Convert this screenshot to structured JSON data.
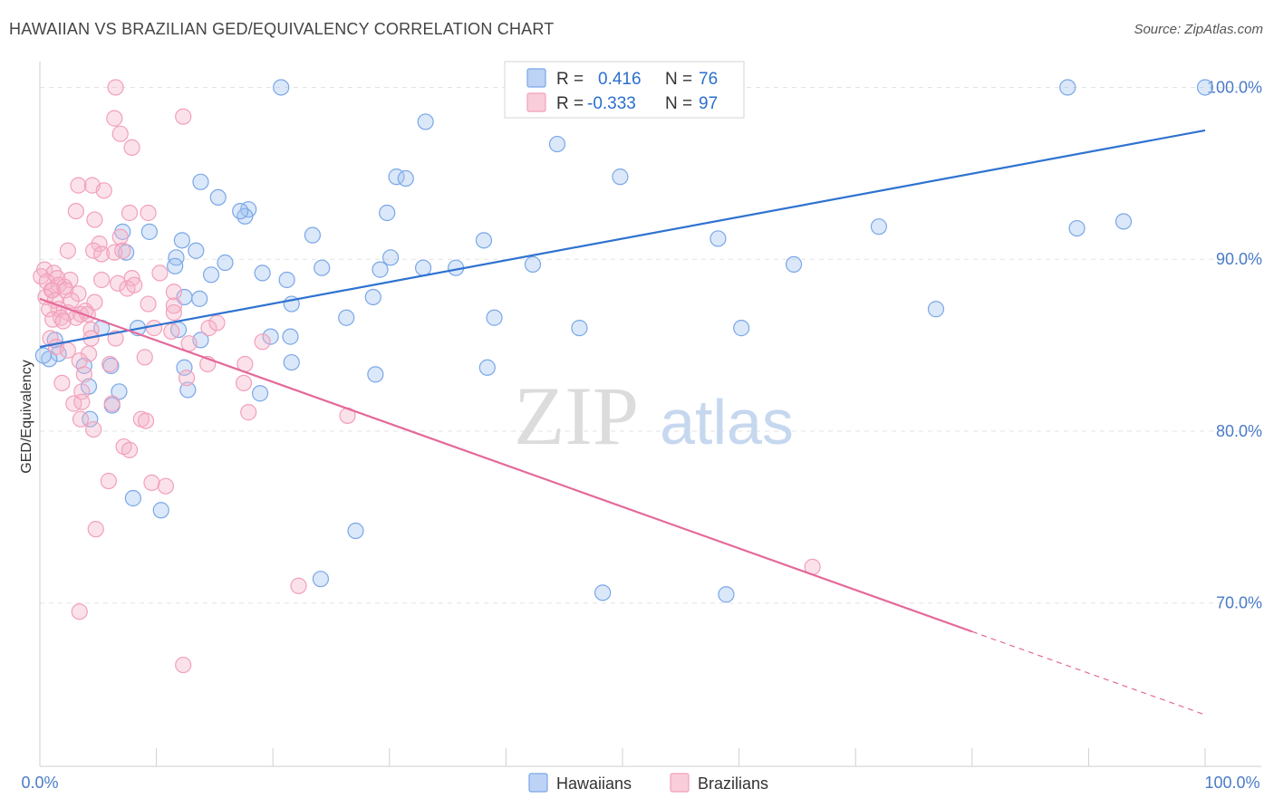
{
  "title": "HAWAIIAN VS BRAZILIAN GED/EQUIVALENCY CORRELATION CHART",
  "source": "Source: ZipAtlas.com",
  "watermark": {
    "zip": "ZIP",
    "atlas": "atlas"
  },
  "legend": {
    "rows": [
      {
        "r_label": "R =",
        "r_value": "0.416",
        "n_label": "N =",
        "n_value": "76",
        "color": "#7aa7e8"
      },
      {
        "r_label": "R =",
        "r_value": "-0.333",
        "n_label": "N =",
        "n_value": "97",
        "color": "#f2a0bb"
      }
    ]
  },
  "bottom_legend": [
    {
      "label": "Hawaiians",
      "color": "#7aa7e8"
    },
    {
      "label": "Brazilians",
      "color": "#f2a0bb"
    }
  ],
  "chart_data": {
    "type": "scatter",
    "title": "HAWAIIAN VS BRAZILIAN GED/EQUIVALENCY CORRELATION CHART",
    "xlabel": "",
    "ylabel": "GED/Equivalency",
    "xlim": [
      0,
      100
    ],
    "ylim": [
      60.5,
      101.5
    ],
    "x_tick_labels": [
      "0.0%",
      "100.0%"
    ],
    "y_ticks": [
      {
        "value": 100,
        "label": "100.0%"
      },
      {
        "value": 90,
        "label": "90.0%"
      },
      {
        "value": 80,
        "label": "80.0%"
      },
      {
        "value": 70,
        "label": "70.0%"
      }
    ],
    "grid": true,
    "legend_position": "top-center",
    "series": [
      {
        "name": "Hawaiians",
        "color": "#7aa7e8",
        "line_color": "#2f72d0",
        "trend": {
          "x": [
            0,
            100
          ],
          "y": [
            84.9,
            97.5
          ],
          "dashed_from": null
        },
        "points": [
          [
            20.7,
            100
          ],
          [
            48.4,
            100
          ],
          [
            88.2,
            100
          ],
          [
            100,
            100
          ],
          [
            33.1,
            98
          ],
          [
            44.4,
            96.7
          ],
          [
            49.8,
            94.8
          ],
          [
            13.8,
            94.5
          ],
          [
            30.6,
            94.8
          ],
          [
            31.4,
            94.7
          ],
          [
            15.3,
            93.6
          ],
          [
            17.9,
            92.9
          ],
          [
            17.6,
            92.5
          ],
          [
            17.2,
            92.8
          ],
          [
            29.8,
            92.7
          ],
          [
            93,
            92.2
          ],
          [
            72,
            91.9
          ],
          [
            89,
            91.8
          ],
          [
            38.1,
            91.1
          ],
          [
            58.2,
            91.2
          ],
          [
            23.4,
            91.4
          ],
          [
            9.4,
            91.6
          ],
          [
            12.2,
            91.1
          ],
          [
            7.1,
            91.6
          ],
          [
            7.4,
            90.4
          ],
          [
            11.7,
            90.1
          ],
          [
            13.4,
            90.5
          ],
          [
            15.9,
            89.8
          ],
          [
            11.6,
            89.6
          ],
          [
            30.1,
            90.1
          ],
          [
            42.3,
            89.7
          ],
          [
            64.7,
            89.7
          ],
          [
            24.2,
            89.5
          ],
          [
            29.2,
            89.4
          ],
          [
            35.7,
            89.5
          ],
          [
            14.7,
            89.1
          ],
          [
            32.9,
            89.5
          ],
          [
            19.1,
            89.2
          ],
          [
            21.2,
            88.8
          ],
          [
            12.4,
            87.8
          ],
          [
            13.7,
            87.7
          ],
          [
            28.6,
            87.8
          ],
          [
            21.6,
            87.4
          ],
          [
            76.9,
            87.1
          ],
          [
            26.3,
            86.6
          ],
          [
            39,
            86.6
          ],
          [
            46.3,
            86
          ],
          [
            60.2,
            86
          ],
          [
            5.3,
            86
          ],
          [
            11.9,
            85.9
          ],
          [
            8.4,
            86
          ],
          [
            19.8,
            85.5
          ],
          [
            21.5,
            85.5
          ],
          [
            1.3,
            85.3
          ],
          [
            13.8,
            85.3
          ],
          [
            1.6,
            84.5
          ],
          [
            0.8,
            84.2
          ],
          [
            0.3,
            84.4
          ],
          [
            3.8,
            83.8
          ],
          [
            6.1,
            83.8
          ],
          [
            12.4,
            83.7
          ],
          [
            21.6,
            84
          ],
          [
            38.4,
            83.7
          ],
          [
            28.8,
            83.3
          ],
          [
            4.2,
            82.6
          ],
          [
            6.8,
            82.3
          ],
          [
            12.7,
            82.4
          ],
          [
            18.9,
            82.2
          ],
          [
            6.2,
            81.5
          ],
          [
            4.3,
            80.7
          ],
          [
            8,
            76.1
          ],
          [
            10.4,
            75.4
          ],
          [
            27.1,
            74.2
          ],
          [
            24.1,
            71.4
          ],
          [
            48.3,
            70.6
          ],
          [
            58.9,
            70.5
          ]
        ]
      },
      {
        "name": "Brazilians",
        "color": "#f2a0bb",
        "line_color": "#e4699a",
        "trend": {
          "x": [
            0,
            100
          ],
          "y": [
            87.7,
            63.5
          ],
          "dashed_from": 80
        },
        "points": [
          [
            6.5,
            100
          ],
          [
            6.4,
            98.2
          ],
          [
            12.3,
            98.3
          ],
          [
            6.9,
            97.3
          ],
          [
            7.9,
            96.5
          ],
          [
            3.3,
            94.3
          ],
          [
            4.5,
            94.3
          ],
          [
            5.5,
            94
          ],
          [
            7.7,
            92.7
          ],
          [
            9.3,
            92.7
          ],
          [
            3.1,
            92.8
          ],
          [
            4.7,
            92.3
          ],
          [
            6.9,
            91.3
          ],
          [
            5.1,
            90.9
          ],
          [
            4.6,
            90.5
          ],
          [
            5.3,
            90.3
          ],
          [
            6.4,
            90.4
          ],
          [
            7.1,
            90.5
          ],
          [
            2.4,
            90.5
          ],
          [
            0.4,
            89.4
          ],
          [
            1.2,
            89.2
          ],
          [
            0.1,
            89
          ],
          [
            1.5,
            88.9
          ],
          [
            2.6,
            88.8
          ],
          [
            0.6,
            88.7
          ],
          [
            1.6,
            88.5
          ],
          [
            2.1,
            88.4
          ],
          [
            1,
            88.2
          ],
          [
            1.1,
            88.2
          ],
          [
            2.2,
            88.2
          ],
          [
            7.9,
            88.9
          ],
          [
            10.3,
            89.2
          ],
          [
            5.3,
            88.8
          ],
          [
            6.7,
            88.6
          ],
          [
            7.5,
            88.3
          ],
          [
            8.1,
            88.5
          ],
          [
            11.5,
            88.1
          ],
          [
            3.3,
            88
          ],
          [
            0.5,
            87.8
          ],
          [
            1.3,
            87.6
          ],
          [
            2.7,
            87.6
          ],
          [
            4.7,
            87.5
          ],
          [
            9.3,
            87.4
          ],
          [
            11.5,
            87.3
          ],
          [
            1.6,
            87.1
          ],
          [
            0.8,
            87.1
          ],
          [
            3.9,
            87
          ],
          [
            2.4,
            86.9
          ],
          [
            3.5,
            86.8
          ],
          [
            4.1,
            86.8
          ],
          [
            11.5,
            86.9
          ],
          [
            3.1,
            86.6
          ],
          [
            1.8,
            86.6
          ],
          [
            1.1,
            86.5
          ],
          [
            2,
            86.4
          ],
          [
            4.4,
            85.9
          ],
          [
            6.5,
            85.4
          ],
          [
            9.8,
            86
          ],
          [
            11.3,
            85.8
          ],
          [
            14.5,
            86
          ],
          [
            15.2,
            86.3
          ],
          [
            0.9,
            85.4
          ],
          [
            4.4,
            85.4
          ],
          [
            12.8,
            85.1
          ],
          [
            19.1,
            85.2
          ],
          [
            1.4,
            84.9
          ],
          [
            2.4,
            84.7
          ],
          [
            4.2,
            84.5
          ],
          [
            3.4,
            84.1
          ],
          [
            9,
            84.3
          ],
          [
            6,
            83.9
          ],
          [
            14.4,
            83.9
          ],
          [
            17.6,
            83.9
          ],
          [
            3.8,
            83.3
          ],
          [
            12.6,
            83.1
          ],
          [
            1.9,
            82.8
          ],
          [
            17.5,
            82.8
          ],
          [
            3.6,
            82.3
          ],
          [
            2.9,
            81.6
          ],
          [
            3.6,
            81.7
          ],
          [
            6.2,
            81.6
          ],
          [
            17.9,
            81.1
          ],
          [
            26.4,
            80.9
          ],
          [
            3.5,
            80.7
          ],
          [
            8.7,
            80.7
          ],
          [
            9.1,
            80.6
          ],
          [
            4.6,
            80.1
          ],
          [
            7.2,
            79.1
          ],
          [
            7.7,
            78.9
          ],
          [
            5.9,
            77.1
          ],
          [
            9.6,
            77
          ],
          [
            10.8,
            76.8
          ],
          [
            4.8,
            74.3
          ],
          [
            22.2,
            71
          ],
          [
            66.3,
            72.1
          ],
          [
            3.4,
            69.5
          ],
          [
            12.3,
            66.4
          ]
        ]
      }
    ]
  }
}
